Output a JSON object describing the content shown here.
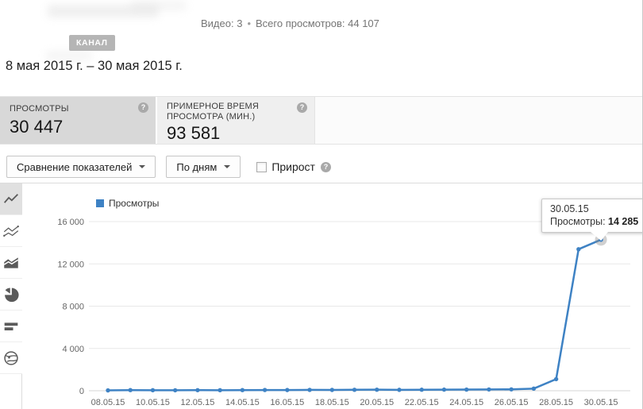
{
  "header": {
    "channel_badge": "КАНАЛ",
    "videos_label": "Видео: 3",
    "separator": "•",
    "total_views_label": "Всего просмотров: 44 107",
    "date_range": "8 мая 2015 г. – 30 мая 2015 г."
  },
  "metrics": [
    {
      "label": "ПРОСМОТРЫ",
      "value": "30 447",
      "selected": true
    },
    {
      "label": "ПРИМЕРНОЕ ВРЕМЯ ПРОСМОТРА (МИН.)",
      "value": "93 581",
      "selected": false
    }
  ],
  "controls": {
    "compare_dropdown": "Сравнение показателей",
    "granularity_dropdown": "По дням",
    "growth_checkbox_label": "Прирост",
    "growth_checked": false
  },
  "sidebar": {
    "items": [
      {
        "icon": "line-chart-icon",
        "selected": true
      },
      {
        "icon": "multiline-chart-icon",
        "selected": false
      },
      {
        "icon": "area-chart-icon",
        "selected": false
      },
      {
        "icon": "pie-chart-icon",
        "selected": false
      },
      {
        "icon": "bar-chart-icon",
        "selected": false
      },
      {
        "icon": "globe-icon",
        "selected": false
      }
    ]
  },
  "chart_data": {
    "type": "line",
    "legend": [
      "Просмотры"
    ],
    "legend_position": "top-left",
    "series_color": "#3e82c4",
    "grid": true,
    "x": [
      "08.05.15",
      "09.05.15",
      "10.05.15",
      "11.05.15",
      "12.05.15",
      "13.05.15",
      "14.05.15",
      "15.05.15",
      "16.05.15",
      "17.05.15",
      "18.05.15",
      "19.05.15",
      "20.05.15",
      "21.05.15",
      "22.05.15",
      "23.05.15",
      "24.05.15",
      "25.05.15",
      "26.05.15",
      "27.05.15",
      "28.05.15",
      "29.05.15",
      "30.05.15"
    ],
    "values": [
      35,
      60,
      50,
      45,
      55,
      50,
      60,
      70,
      65,
      80,
      75,
      90,
      100,
      85,
      95,
      105,
      110,
      120,
      130,
      200,
      1097,
      13385,
      14285
    ],
    "x_label_every": 2,
    "ylim": [
      0,
      16000
    ],
    "yticks": [
      0,
      4000,
      8000,
      12000,
      16000
    ],
    "ytick_labels": [
      "0",
      "4 000",
      "8 000",
      "12 000",
      "16 000"
    ],
    "xlabel": "",
    "ylabel": ""
  },
  "tooltip": {
    "date": "30.05.15",
    "label": "Просмотры:",
    "value": "14 285"
  }
}
